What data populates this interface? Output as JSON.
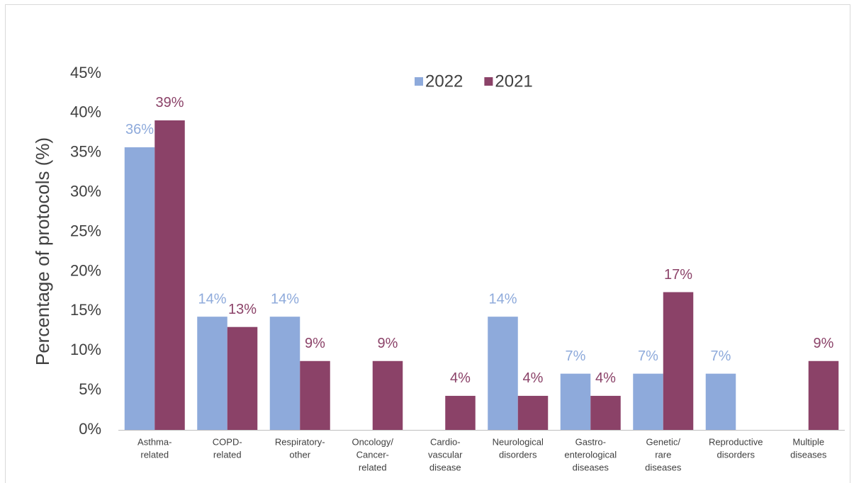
{
  "chart_data": {
    "type": "bar",
    "y_axis_label": "Percentage of protocols (%)",
    "categories": [
      [
        "Asthma-",
        "related"
      ],
      [
        "COPD-",
        "related"
      ],
      [
        "Respiratory-",
        "other"
      ],
      [
        "Oncology/",
        "Cancer-",
        "related"
      ],
      [
        "Cardio-",
        "vascular",
        "disease"
      ],
      [
        "Neurological",
        "disorders"
      ],
      [
        "Gastro-",
        "enterological",
        "diseases"
      ],
      [
        "Genetic/",
        "rare",
        "diseases"
      ],
      [
        "Reproductive",
        "disorders"
      ],
      [
        "Multiple",
        "diseases"
      ]
    ],
    "series": [
      {
        "name": "2022",
        "color": "#8eaadb",
        "values": [
          35.7,
          14.3,
          14.3,
          null,
          null,
          14.3,
          7.1,
          7.1,
          7.1,
          null
        ],
        "value_labels": [
          "36%",
          "14%",
          "14%",
          null,
          null,
          "14%",
          "7%",
          "7%",
          "7%",
          null
        ]
      },
      {
        "name": "2021",
        "color": "#8b4268",
        "values": [
          39.1,
          13.0,
          8.7,
          8.7,
          4.3,
          4.3,
          4.3,
          17.4,
          null,
          8.7
        ],
        "value_labels": [
          "39%",
          "13%",
          "9%",
          "9%",
          "4%",
          "4%",
          "4%",
          "17%",
          null,
          "9%"
        ]
      }
    ],
    "ylim": [
      0,
      45
    ],
    "yticks": [
      {
        "value": 0,
        "label": "0%"
      },
      {
        "value": 5,
        "label": "5%"
      },
      {
        "value": 10,
        "label": "10%"
      },
      {
        "value": 15,
        "label": "15%"
      },
      {
        "value": 20,
        "label": "20%"
      },
      {
        "value": 25,
        "label": "25%"
      },
      {
        "value": 30,
        "label": "30%"
      },
      {
        "value": 35,
        "label": "35%"
      },
      {
        "value": 40,
        "label": "40%"
      },
      {
        "value": 45,
        "label": "45%"
      }
    ],
    "legend": "top"
  }
}
